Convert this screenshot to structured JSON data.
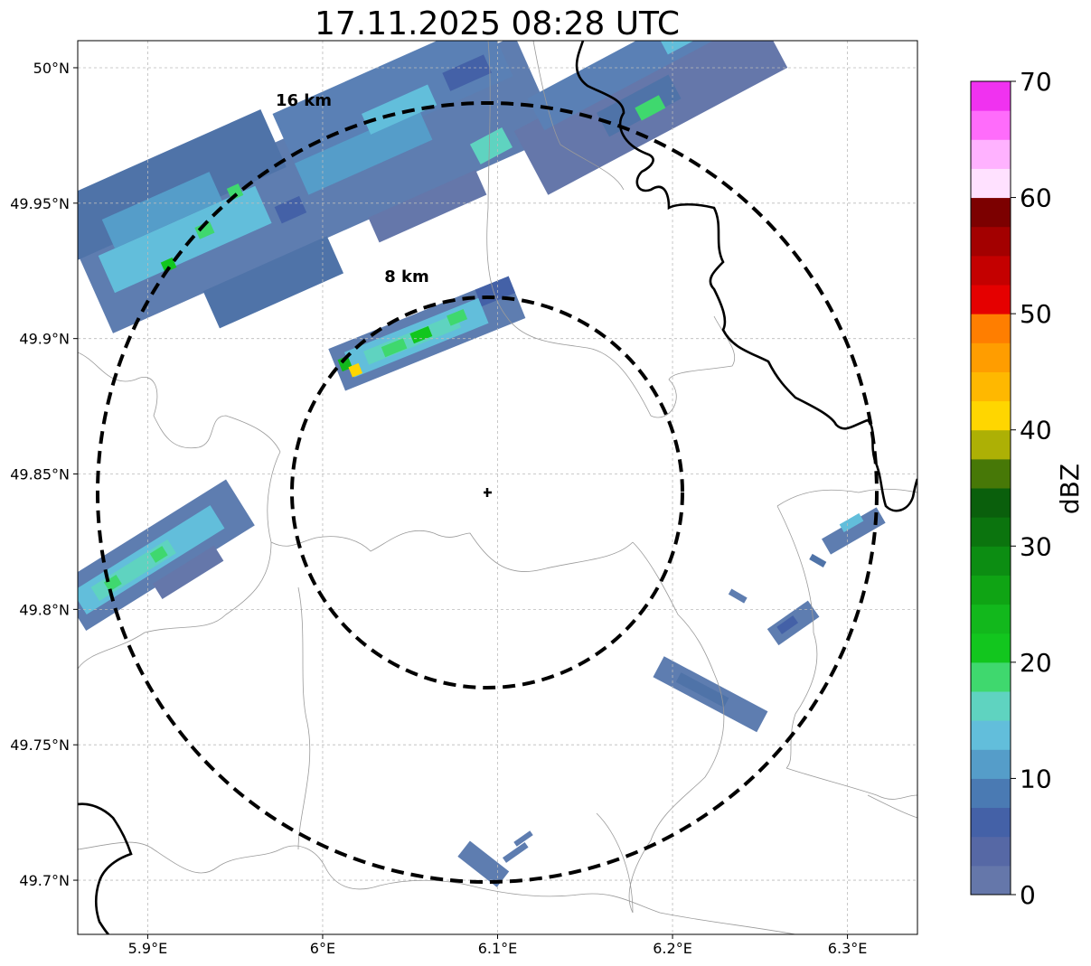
{
  "title": "17.11.2025 08:28 UTC",
  "map": {
    "lon_ticks": [
      {
        "value": 5.9,
        "label": "5.9°E"
      },
      {
        "value": 6.0,
        "label": "6°E"
      },
      {
        "value": 6.1,
        "label": "6.1°E"
      },
      {
        "value": 6.2,
        "label": "6.2°E"
      },
      {
        "value": 6.3,
        "label": "6.3°E"
      }
    ],
    "lat_ticks": [
      {
        "value": 50.0,
        "label": "50°N"
      },
      {
        "value": 49.95,
        "label": "49.95°N"
      },
      {
        "value": 49.9,
        "label": "49.9°N"
      },
      {
        "value": 49.85,
        "label": "49.85°N"
      },
      {
        "value": 49.8,
        "label": "49.8°N"
      },
      {
        "value": 49.75,
        "label": "49.75°N"
      },
      {
        "value": 49.7,
        "label": "49.7°N"
      }
    ],
    "lon_range": [
      5.86,
      6.34
    ],
    "lat_range": [
      49.68,
      50.01
    ],
    "gridlines": true,
    "radar_site": {
      "lon": 6.094,
      "lat": 49.843,
      "marker": "plus"
    },
    "range_rings": [
      {
        "radius_km": 8,
        "label": "8 km"
      },
      {
        "radius_km": 16,
        "label": "16 km"
      }
    ]
  },
  "colorbar": {
    "label": "dBZ",
    "min": 0,
    "max": 70,
    "tick_labels": [
      "0",
      "10",
      "20",
      "30",
      "40",
      "50",
      "60",
      "70"
    ],
    "colors": [
      "#6577aa",
      "#5668a5",
      "#4461a7",
      "#4a7ab3",
      "#559dc9",
      "#62bedb",
      "#5fd3c0",
      "#3fd86e",
      "#12c61e",
      "#12b81c",
      "#0fa414",
      "#0c8d12",
      "#0b740e",
      "#0a5f0c",
      "#477807",
      "#adb005",
      "#ffd600",
      "#ffb800",
      "#ff9d00",
      "#ff7e00",
      "#e50000",
      "#c40000",
      "#a30000",
      "#7c0000",
      "#ffe1ff",
      "#ffb2ff",
      "#ff6cfb",
      "#f032f0"
    ]
  },
  "colors": {
    "ring": "#000000",
    "border_major": "#000000",
    "border_minor": "#9a9a9a",
    "grid": "#bbbbbb"
  }
}
